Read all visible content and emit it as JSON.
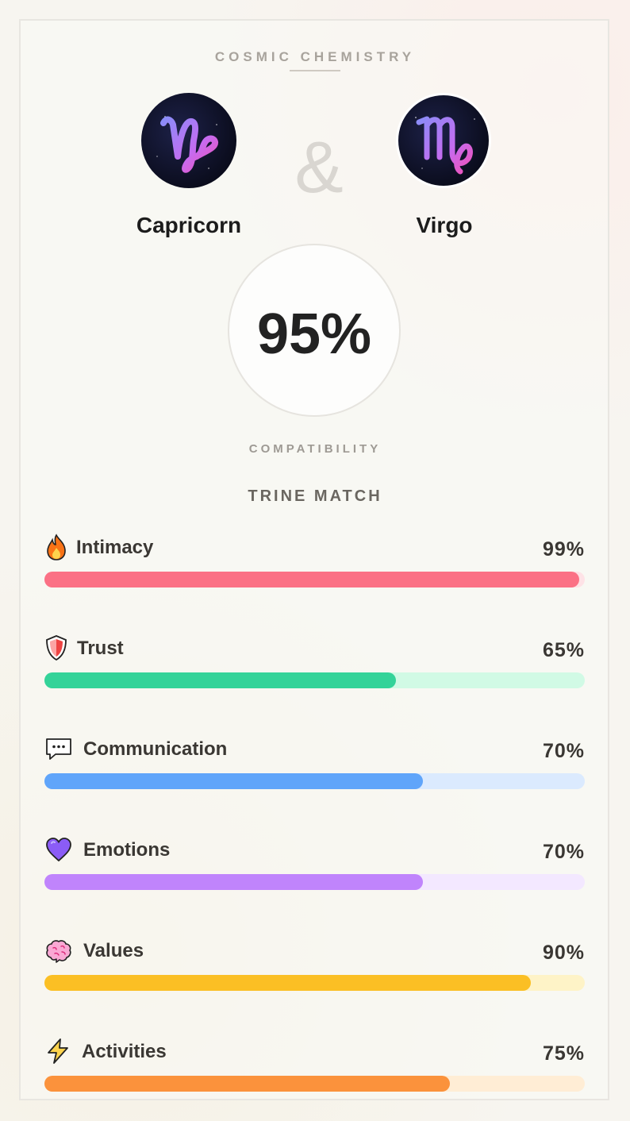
{
  "header": {
    "title": "COSMIC CHEMISTRY"
  },
  "signs": {
    "left": {
      "name": "Capricorn",
      "glyph": "♑",
      "icon": "capricorn-icon"
    },
    "right": {
      "name": "Virgo",
      "glyph": "♍",
      "icon": "virgo-icon"
    },
    "connector": "&"
  },
  "score": {
    "value": "95%",
    "label": "COMPATIBILITY"
  },
  "match": {
    "title": "TRINE MATCH"
  },
  "categories": [
    {
      "label": "Intimacy",
      "percent": "99%",
      "value": 0.99,
      "icon": "fire-icon",
      "color": "#fb7185",
      "track": "#fee2e6"
    },
    {
      "label": "Trust",
      "percent": "65%",
      "value": 0.65,
      "icon": "shield-icon",
      "color": "#34d399",
      "track": "#d1fae5"
    },
    {
      "label": "Communication",
      "percent": "70%",
      "value": 0.7,
      "icon": "speech-bubble-icon",
      "color": "#60a5fa",
      "track": "#dbeafe"
    },
    {
      "label": "Emotions",
      "percent": "70%",
      "value": 0.7,
      "icon": "heart-icon",
      "color": "#c084fc",
      "track": "#f3e8ff"
    },
    {
      "label": "Values",
      "percent": "90%",
      "value": 0.9,
      "icon": "brain-icon",
      "color": "#fbbf24",
      "track": "#fef3c7"
    },
    {
      "label": "Activities",
      "percent": "75%",
      "value": 0.75,
      "icon": "lightning-icon",
      "color": "#fb923c",
      "track": "#ffedd5"
    }
  ]
}
